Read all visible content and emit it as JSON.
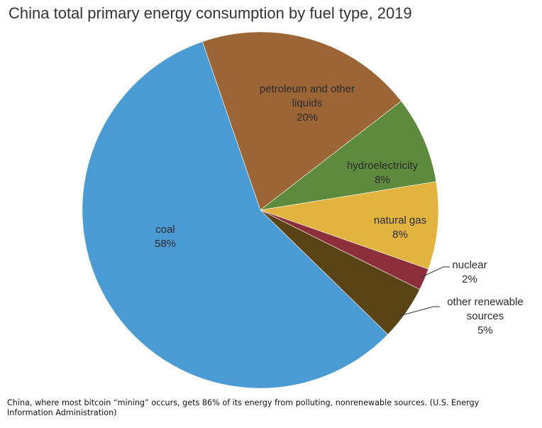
{
  "caption": "China, where most bitcoin “mining” occurs, gets 86% of its energy from polluting, nonrenewable sources. (U.S. Energy Information Administration)",
  "chart_data": {
    "type": "pie",
    "title": "China total primary energy consumption by fuel type, 2019",
    "unit": "%",
    "start_angle_deg": -19,
    "slices": [
      {
        "key": "petroleum",
        "label_lines": [
          "petroleum and other",
          "liquids"
        ],
        "value_label": "20%",
        "value": 20,
        "color": "#9b6535"
      },
      {
        "key": "hydro",
        "label_lines": [
          "hydroelectricity"
        ],
        "value_label": "8%",
        "value": 8,
        "color": "#5d8a3c"
      },
      {
        "key": "natural-gas",
        "label_lines": [
          "natural gas"
        ],
        "value_label": "8%",
        "value": 8,
        "color": "#e2b43f"
      },
      {
        "key": "nuclear",
        "label_lines": [
          "nuclear"
        ],
        "value_label": "2%",
        "value": 2,
        "color": "#8c2f3b"
      },
      {
        "key": "other-renewable",
        "label_lines": [
          "other renewable",
          "sources"
        ],
        "value_label": "5%",
        "value": 5,
        "color": "#5a4416"
      },
      {
        "key": "coal",
        "label_lines": [
          "coal"
        ],
        "value_label": "58%",
        "value": 58,
        "color": "#4a9ad3"
      }
    ]
  }
}
